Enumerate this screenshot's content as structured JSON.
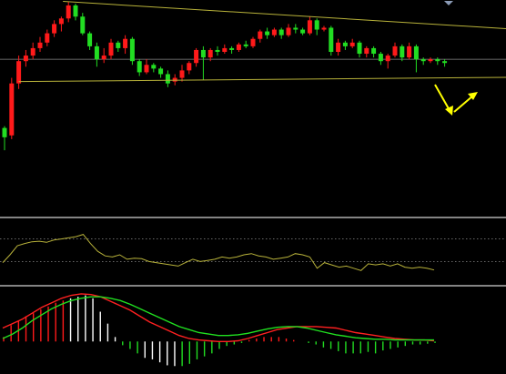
{
  "colors": {
    "background": "#000000",
    "up": "#ff1a1a",
    "down": "#22dd22",
    "trendline": "#b8b23a",
    "oscillator": "#b8b23a",
    "level": "#8a8a8a",
    "divider": "#b0b0b0",
    "macd_fast": "#ff2020",
    "macd_slow": "#20e020",
    "annotation": "#ffff00"
  },
  "chart_data": [
    {
      "type": "candlestick",
      "title": "",
      "ylim": [
        0,
        100
      ],
      "candles": [
        [
          34,
          29,
          35,
          22
        ],
        [
          30,
          58,
          61,
          28
        ],
        [
          58,
          70,
          73,
          55
        ],
        [
          70,
          73,
          76,
          67
        ],
        [
          73,
          77,
          80,
          71
        ],
        [
          77,
          80,
          83,
          75
        ],
        [
          80,
          85,
          87,
          78
        ],
        [
          85,
          90,
          92,
          83
        ],
        [
          90,
          93,
          94,
          86
        ],
        [
          93,
          100,
          102,
          91
        ],
        [
          100,
          94,
          101,
          92
        ],
        [
          94,
          85,
          96,
          84
        ],
        [
          85,
          78,
          86,
          76
        ],
        [
          78,
          71,
          80,
          67
        ],
        [
          71,
          73,
          77,
          69
        ],
        [
          73,
          80,
          82,
          71
        ],
        [
          80,
          77,
          81,
          75
        ],
        [
          77,
          82,
          84,
          74
        ],
        [
          82,
          70,
          83,
          68
        ],
        [
          70,
          64,
          71,
          62
        ],
        [
          64,
          68,
          71,
          63
        ],
        [
          68,
          66,
          69,
          64
        ],
        [
          66,
          63,
          67,
          61
        ],
        [
          63,
          58,
          65,
          56
        ],
        [
          59,
          61,
          63,
          57
        ],
        [
          61,
          65,
          68,
          59
        ],
        [
          65,
          69,
          70,
          63
        ],
        [
          69,
          76,
          77,
          67
        ],
        [
          76,
          72,
          78,
          60
        ],
        [
          72,
          76,
          77,
          70
        ],
        [
          76,
          75,
          78,
          73
        ],
        [
          75,
          77,
          79,
          74
        ],
        [
          77,
          76,
          78,
          74
        ],
        [
          76,
          79,
          80,
          75
        ],
        [
          79,
          78,
          81,
          77
        ],
        [
          78,
          82,
          83,
          77
        ],
        [
          82,
          86,
          87,
          80
        ],
        [
          86,
          84,
          88,
          82
        ],
        [
          84,
          87,
          88,
          83
        ],
        [
          87,
          84,
          88,
          82
        ],
        [
          84,
          88,
          90,
          83
        ],
        [
          88,
          87,
          90,
          85
        ],
        [
          87,
          85,
          88,
          84
        ],
        [
          85,
          92,
          94,
          84
        ],
        [
          92,
          87,
          93,
          84
        ],
        [
          87,
          88,
          89,
          86
        ],
        [
          88,
          75,
          89,
          73
        ],
        [
          75,
          80,
          82,
          73
        ],
        [
          80,
          78,
          81,
          76
        ],
        [
          78,
          80,
          82,
          77
        ],
        [
          80,
          74,
          81,
          72
        ],
        [
          74,
          77,
          78,
          72
        ],
        [
          77,
          74,
          78,
          72
        ],
        [
          74,
          70,
          75,
          68
        ],
        [
          70,
          73,
          74,
          66
        ],
        [
          73,
          78,
          80,
          72
        ],
        [
          78,
          72,
          79,
          70
        ],
        [
          72,
          78,
          80,
          71
        ],
        [
          78,
          71,
          79,
          64
        ],
        [
          71,
          70,
          72,
          68
        ],
        [
          70,
          71,
          72,
          69
        ],
        [
          71,
          70,
          72,
          68
        ],
        [
          70,
          69,
          71,
          67
        ]
      ],
      "horizontal_level": 71
    },
    {
      "type": "line",
      "title": "",
      "ylim": [
        0,
        100
      ],
      "levels": [
        70,
        30
      ],
      "series": [
        {
          "values": [
            28,
            42,
            58,
            62,
            65,
            66,
            64,
            68,
            70,
            72,
            74,
            78,
            62,
            48,
            40,
            38,
            42,
            34,
            36,
            35,
            30,
            28,
            26,
            24,
            22,
            28,
            34,
            30,
            32,
            34,
            38,
            36,
            38,
            42,
            44,
            40,
            38,
            34,
            36,
            38,
            44,
            42,
            38,
            18,
            28,
            24,
            20,
            22,
            18,
            14,
            26,
            24,
            26,
            22,
            26,
            20,
            18,
            20,
            18,
            15
          ]
        }
      ]
    },
    {
      "type": "bar",
      "title": "",
      "ylim": [
        -40,
        70
      ],
      "bars": [
        6,
        22,
        28,
        34,
        38,
        43,
        47,
        52,
        55,
        58,
        60,
        62,
        58,
        40,
        24,
        6,
        -5,
        -10,
        -16,
        -22,
        -24,
        -28,
        -32,
        -33,
        -33,
        -30,
        -24,
        -20,
        -16,
        -10,
        -6,
        -4,
        -2,
        2,
        4,
        6,
        6,
        6,
        4,
        2,
        0,
        -2,
        -4,
        -8,
        -10,
        -13,
        -16,
        -16,
        -16,
        -14,
        -16,
        -12,
        -10,
        -8,
        -6,
        -4,
        -4,
        -3,
        -2
      ],
      "series": [
        {
          "values": [
            18,
            24,
            30,
            38,
            46,
            52,
            58,
            62,
            64,
            63,
            60,
            54,
            48,
            42,
            34,
            26,
            20,
            14,
            8,
            4,
            2,
            1,
            0,
            0,
            1,
            4,
            8,
            12,
            16,
            18,
            20,
            20,
            20,
            19,
            18,
            15,
            12,
            10,
            8,
            6,
            4,
            3,
            2,
            2,
            1
          ]
        },
        {
          "values": [
            4,
            10,
            18,
            28,
            36,
            44,
            50,
            55,
            58,
            60,
            60,
            58,
            55,
            50,
            44,
            38,
            32,
            26,
            20,
            16,
            12,
            10,
            8,
            8,
            9,
            11,
            14,
            17,
            19,
            20,
            20,
            18,
            15,
            12,
            9,
            7,
            5,
            4,
            3,
            3,
            2,
            2,
            2,
            2,
            2
          ]
        }
      ]
    }
  ]
}
